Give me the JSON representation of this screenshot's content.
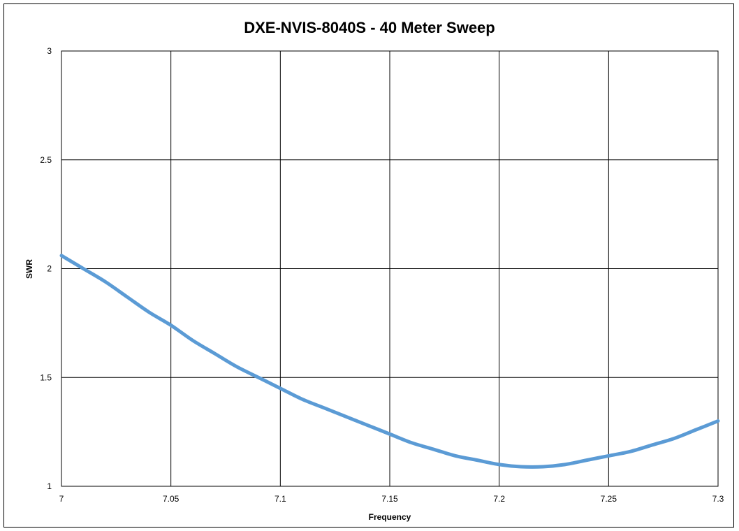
{
  "chart_data": {
    "type": "line",
    "title": "DXE-NVIS-8040S - 40 Meter Sweep",
    "xlabel": "Frequency",
    "ylabel": "SWR",
    "xlim": [
      7,
      7.3
    ],
    "ylim": [
      1,
      3
    ],
    "x_ticks": [
      "7",
      "7.05",
      "7.1",
      "7.15",
      "7.2",
      "7.25",
      "7.3"
    ],
    "y_ticks": [
      "1",
      "1.5",
      "2",
      "2.5",
      "3"
    ],
    "grid": true,
    "legend": "none",
    "series": [
      {
        "color": "#5b9bd5",
        "points": [
          [
            7.0,
            2.06
          ],
          [
            7.01,
            2.0
          ],
          [
            7.02,
            1.94
          ],
          [
            7.03,
            1.87
          ],
          [
            7.04,
            1.8
          ],
          [
            7.05,
            1.74
          ],
          [
            7.06,
            1.67
          ],
          [
            7.07,
            1.61
          ],
          [
            7.08,
            1.55
          ],
          [
            7.09,
            1.5
          ],
          [
            7.1,
            1.45
          ],
          [
            7.11,
            1.4
          ],
          [
            7.12,
            1.36
          ],
          [
            7.13,
            1.32
          ],
          [
            7.14,
            1.28
          ],
          [
            7.15,
            1.24
          ],
          [
            7.16,
            1.2
          ],
          [
            7.17,
            1.17
          ],
          [
            7.18,
            1.14
          ],
          [
            7.19,
            1.12
          ],
          [
            7.2,
            1.1
          ],
          [
            7.21,
            1.09
          ],
          [
            7.22,
            1.09
          ],
          [
            7.23,
            1.1
          ],
          [
            7.24,
            1.12
          ],
          [
            7.25,
            1.14
          ],
          [
            7.26,
            1.16
          ],
          [
            7.27,
            1.19
          ],
          [
            7.28,
            1.22
          ],
          [
            7.29,
            1.26
          ],
          [
            7.3,
            1.3
          ]
        ]
      }
    ]
  }
}
